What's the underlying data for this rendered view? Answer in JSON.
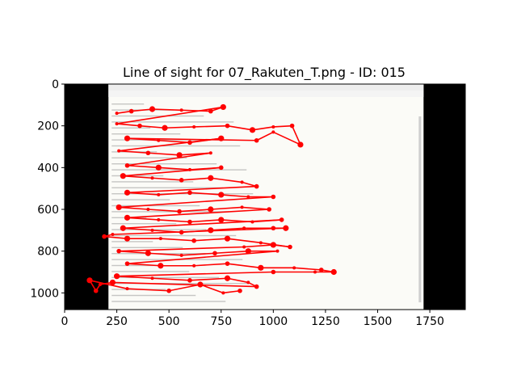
{
  "chart_data": {
    "type": "scatter",
    "title": "Line of sight for 07_Rakuten_T.png - ID: 015",
    "xlabel": "",
    "ylabel": "",
    "xlim": [
      0,
      1920
    ],
    "ylim": [
      1080,
      0
    ],
    "y_inverted": true,
    "x_ticks": [
      0,
      250,
      500,
      750,
      1000,
      1250,
      1500,
      1750
    ],
    "y_ticks": [
      0,
      200,
      400,
      600,
      800,
      1000
    ],
    "x_tick_labels": [
      "0",
      "250",
      "500",
      "750",
      "1000",
      "1250",
      "1500",
      "1750"
    ],
    "y_tick_labels": [
      "0",
      "200",
      "400",
      "600",
      "800",
      "1000"
    ],
    "grid": false,
    "background_image": {
      "description_kind": "email client screenshot",
      "x_range": [
        210,
        1720
      ],
      "y_range": [
        0,
        1080
      ],
      "letterbox_color": "#000000"
    },
    "series": [
      {
        "color": "#ff0000",
        "marker": "circle",
        "points": [
          [
            250,
            140
          ],
          [
            320,
            130
          ],
          [
            420,
            120
          ],
          [
            560,
            125
          ],
          [
            700,
            130
          ],
          [
            760,
            110
          ],
          [
            250,
            190
          ],
          [
            360,
            200
          ],
          [
            480,
            210
          ],
          [
            620,
            205
          ],
          [
            780,
            200
          ],
          [
            900,
            220
          ],
          [
            1000,
            205
          ],
          [
            1090,
            200
          ],
          [
            1130,
            290
          ],
          [
            1000,
            230
          ],
          [
            920,
            270
          ],
          [
            300,
            260
          ],
          [
            450,
            270
          ],
          [
            600,
            280
          ],
          [
            750,
            260
          ],
          [
            260,
            320
          ],
          [
            400,
            330
          ],
          [
            550,
            340
          ],
          [
            700,
            330
          ],
          [
            300,
            390
          ],
          [
            450,
            400
          ],
          [
            600,
            410
          ],
          [
            750,
            400
          ],
          [
            280,
            440
          ],
          [
            420,
            450
          ],
          [
            560,
            460
          ],
          [
            700,
            450
          ],
          [
            850,
            470
          ],
          [
            920,
            490
          ],
          [
            300,
            520
          ],
          [
            450,
            530
          ],
          [
            600,
            520
          ],
          [
            750,
            530
          ],
          [
            880,
            540
          ],
          [
            1000,
            540
          ],
          [
            260,
            590
          ],
          [
            400,
            600
          ],
          [
            550,
            610
          ],
          [
            700,
            600
          ],
          [
            850,
            590
          ],
          [
            980,
            600
          ],
          [
            300,
            640
          ],
          [
            450,
            650
          ],
          [
            600,
            660
          ],
          [
            750,
            650
          ],
          [
            900,
            660
          ],
          [
            1040,
            650
          ],
          [
            280,
            690
          ],
          [
            420,
            700
          ],
          [
            560,
            710
          ],
          [
            700,
            700
          ],
          [
            860,
            690
          ],
          [
            1000,
            690
          ],
          [
            1060,
            690
          ],
          [
            230,
            720
          ],
          [
            190,
            730
          ],
          [
            300,
            740
          ],
          [
            460,
            740
          ],
          [
            620,
            750
          ],
          [
            780,
            740
          ],
          [
            940,
            760
          ],
          [
            1080,
            780
          ],
          [
            1000,
            770
          ],
          [
            860,
            780
          ],
          [
            260,
            800
          ],
          [
            400,
            810
          ],
          [
            560,
            820
          ],
          [
            720,
            810
          ],
          [
            880,
            800
          ],
          [
            1020,
            800
          ],
          [
            300,
            860
          ],
          [
            460,
            870
          ],
          [
            620,
            870
          ],
          [
            780,
            860
          ],
          [
            940,
            880
          ],
          [
            1100,
            880
          ],
          [
            1230,
            890
          ],
          [
            1290,
            900
          ],
          [
            1200,
            900
          ],
          [
            1000,
            900
          ],
          [
            250,
            920
          ],
          [
            420,
            930
          ],
          [
            600,
            940
          ],
          [
            780,
            930
          ],
          [
            880,
            950
          ],
          [
            920,
            970
          ],
          [
            230,
            950
          ],
          [
            170,
            960
          ],
          [
            150,
            990
          ],
          [
            120,
            940
          ],
          [
            300,
            980
          ],
          [
            500,
            990
          ],
          [
            650,
            960
          ],
          [
            760,
            1000
          ],
          [
            840,
            990
          ]
        ]
      }
    ]
  }
}
